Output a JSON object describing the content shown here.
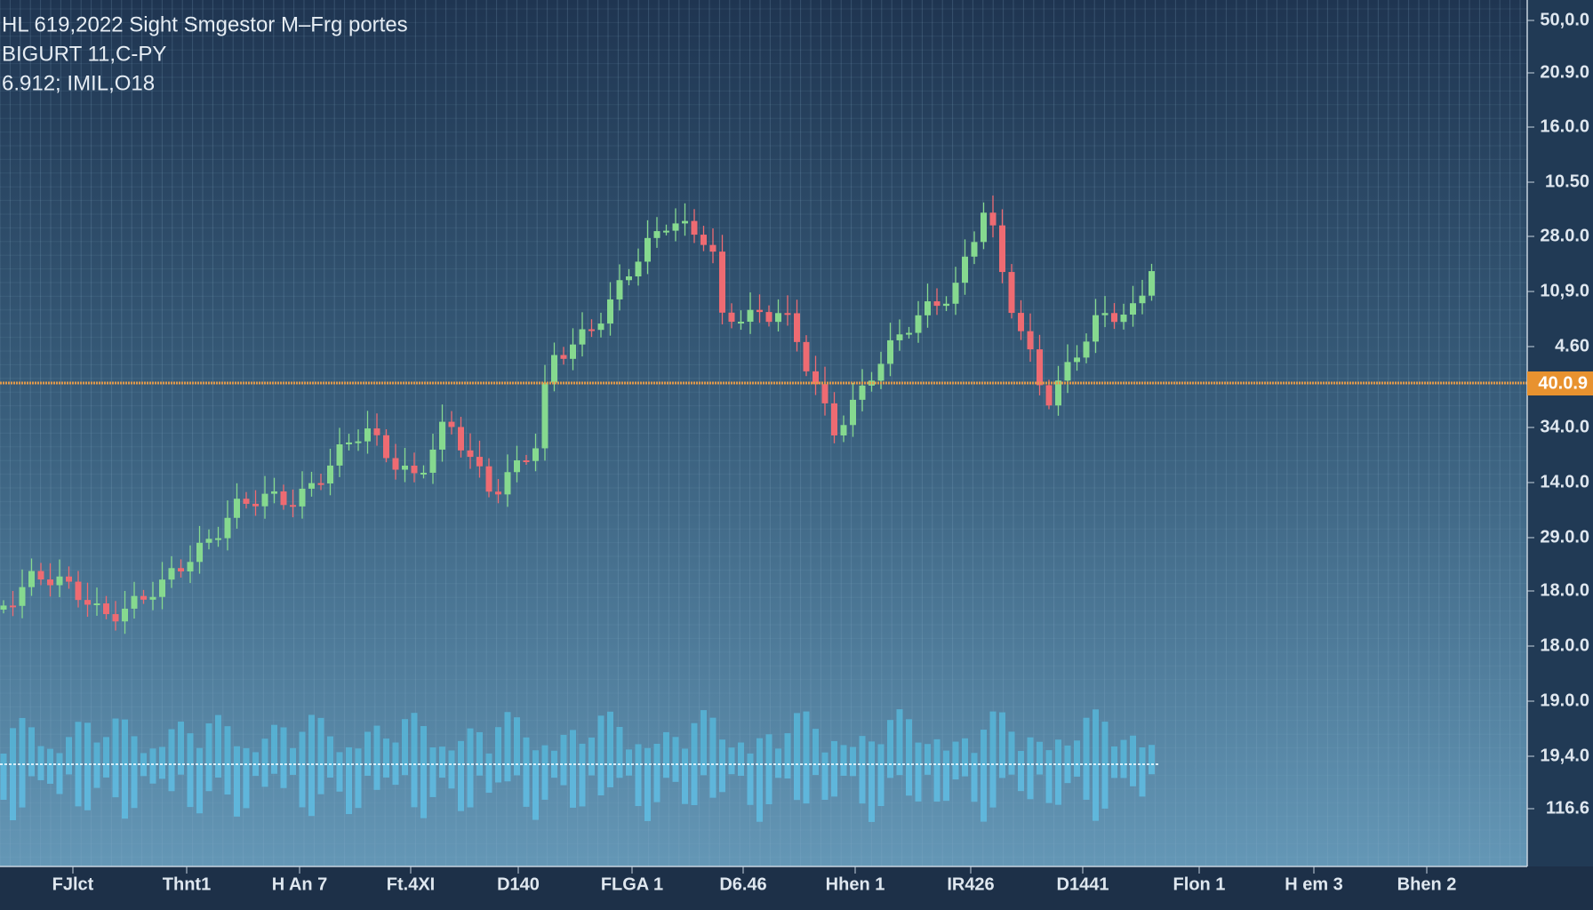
{
  "header": {
    "lines": [
      "HL 619,2022 Sight Smgestor M–Frg portes",
      "BIGURT 11,C-PY",
      "6.912; IMIL,O18"
    ]
  },
  "price_axis": {
    "labels": [
      "50,0.0",
      "20.9.0",
      "16.0.0",
      "10.50",
      "28.0.0",
      "10,9.0",
      "4.60",
      "34.0.0",
      "14.0.0",
      "29.0.0",
      "18.0.0",
      "18.0.0",
      "19.0.0",
      "19,4.0",
      "116.6"
    ],
    "current_price": "40.0.9"
  },
  "time_axis": {
    "labels": [
      "FJlct",
      "Thnt1",
      "H An 7",
      "Ft.4XI",
      "D140",
      "FLGA 1",
      "D6.46",
      "Hhen 1",
      "IR426",
      "D1441",
      "Flon 1",
      "H em 3",
      "Bhen 2"
    ]
  }
}
